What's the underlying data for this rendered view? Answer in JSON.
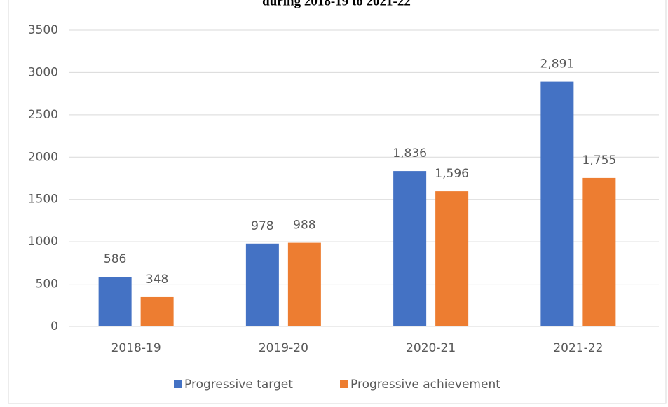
{
  "chart_data": {
    "type": "bar",
    "title": "during 2018-19 to 2021-22",
    "categories": [
      "2018-19",
      "2019-20",
      "2020-21",
      "2021-22"
    ],
    "series": [
      {
        "name": "Progressive target",
        "color": "#4472c4",
        "values": [
          586,
          978,
          1836,
          2891
        ],
        "value_labels": [
          "586",
          "978",
          "1,836",
          "2,891"
        ]
      },
      {
        "name": "Progressive achievement",
        "color": "#ed7d31",
        "values": [
          348,
          988,
          1596,
          1755
        ],
        "value_labels": [
          "348",
          "988",
          "1,596",
          "1,755"
        ]
      }
    ],
    "ylim": [
      0,
      3500
    ],
    "yticks": [
      0,
      500,
      1000,
      1500,
      2000,
      2500,
      3000,
      3500
    ],
    "grid": true,
    "legend": "bottom"
  }
}
